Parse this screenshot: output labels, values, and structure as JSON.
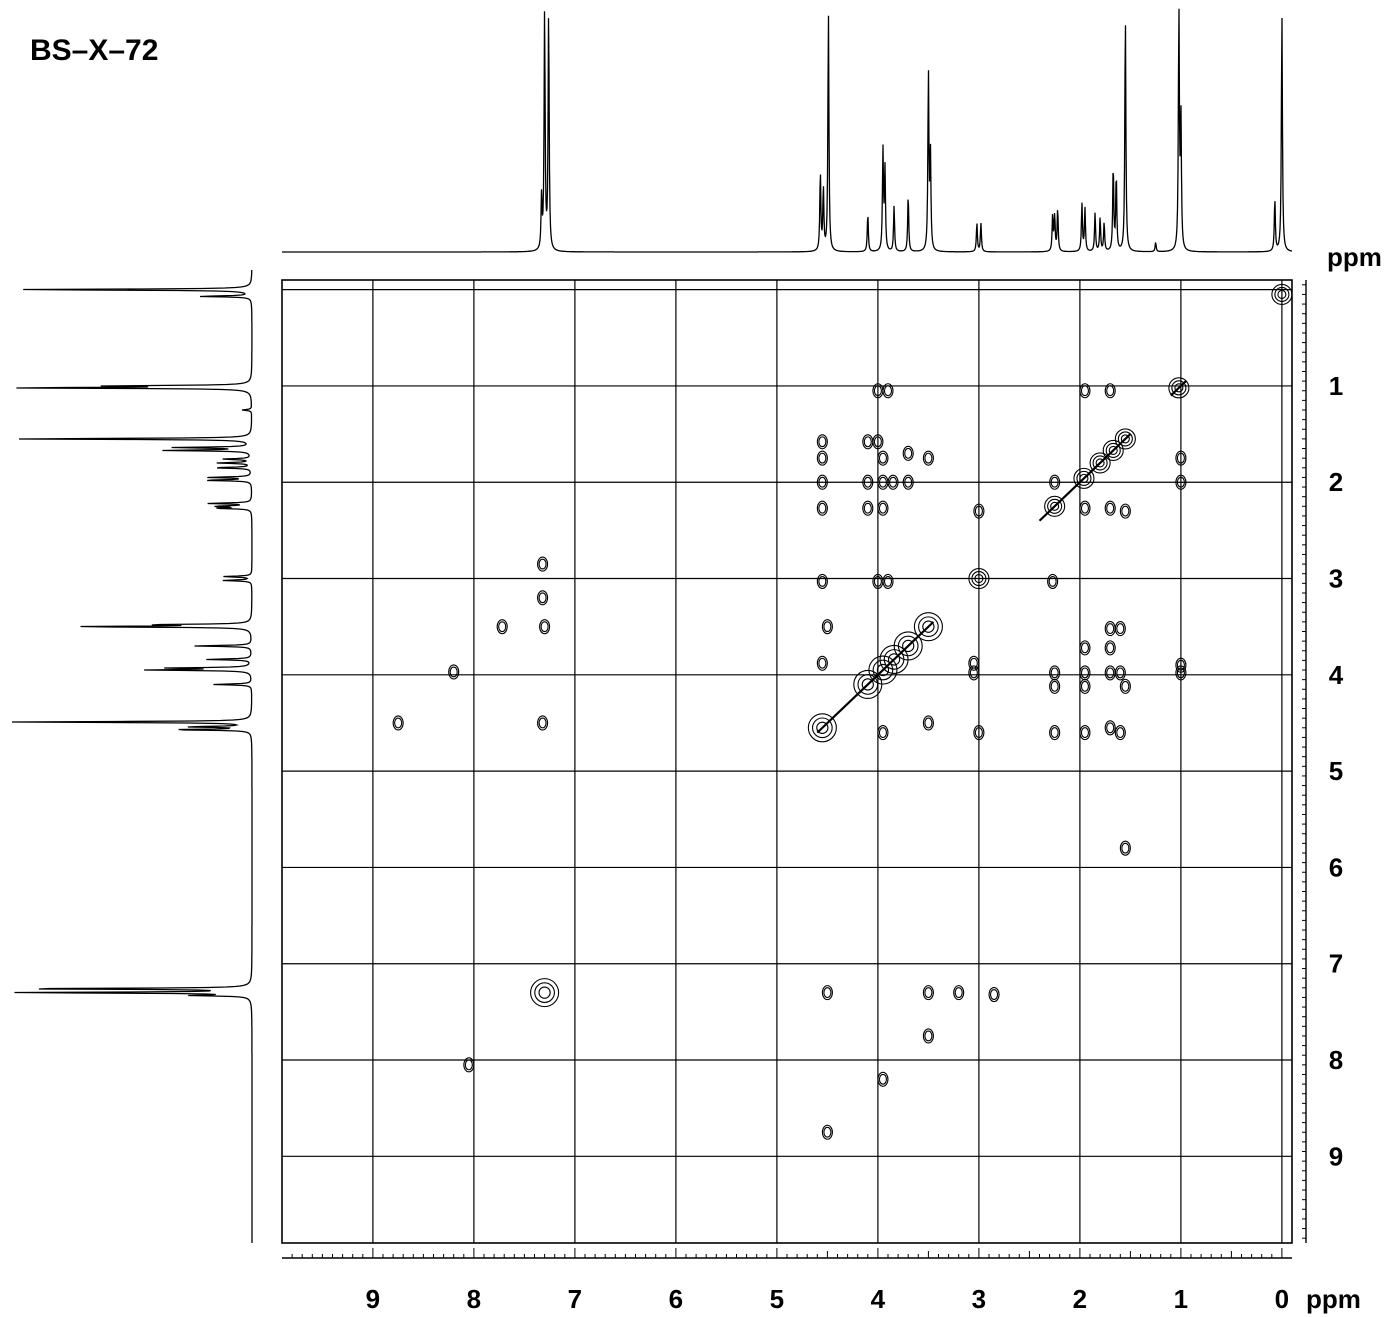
{
  "sample": {
    "label": "BS–X–72"
  },
  "chart_data": {
    "type": "heatmap",
    "title": "BS–X–72",
    "subtype": "2D COSY NMR spectrum with 1D projections",
    "xlabel": "ppm",
    "ylabel": "ppm",
    "xlim": [
      9.9,
      -0.1
    ],
    "ylim": [
      -0.1,
      9.9
    ],
    "x_ticks": [
      "9",
      "8",
      "7",
      "6",
      "5",
      "4",
      "3",
      "2",
      "1",
      "0"
    ],
    "y_ticks": [
      "1",
      "2",
      "3",
      "4",
      "5",
      "6",
      "7",
      "8",
      "9"
    ],
    "grid": true,
    "projection_peaks": [
      {
        "ppm": 7.3,
        "h": 1.0
      },
      {
        "ppm": 7.26,
        "h": 1.0
      },
      {
        "ppm": 7.33,
        "h": 0.22
      },
      {
        "ppm": 4.57,
        "h": 0.33
      },
      {
        "ppm": 4.54,
        "h": 0.26
      },
      {
        "ppm": 4.49,
        "h": 1.0
      },
      {
        "ppm": 4.1,
        "h": 0.16
      },
      {
        "ppm": 3.95,
        "h": 0.42
      },
      {
        "ppm": 3.93,
        "h": 0.34
      },
      {
        "ppm": 3.84,
        "h": 0.19
      },
      {
        "ppm": 3.7,
        "h": 0.24
      },
      {
        "ppm": 3.5,
        "h": 0.74
      },
      {
        "ppm": 3.48,
        "h": 0.4
      },
      {
        "ppm": 3.02,
        "h": 0.12
      },
      {
        "ppm": 2.98,
        "h": 0.12
      },
      {
        "ppm": 2.27,
        "h": 0.15
      },
      {
        "ppm": 2.25,
        "h": 0.15
      },
      {
        "ppm": 2.22,
        "h": 0.18
      },
      {
        "ppm": 1.98,
        "h": 0.2
      },
      {
        "ppm": 1.95,
        "h": 0.18
      },
      {
        "ppm": 1.85,
        "h": 0.16
      },
      {
        "ppm": 1.8,
        "h": 0.14
      },
      {
        "ppm": 1.76,
        "h": 0.12
      },
      {
        "ppm": 1.67,
        "h": 0.36
      },
      {
        "ppm": 1.64,
        "h": 0.32
      },
      {
        "ppm": 1.55,
        "h": 1.0
      },
      {
        "ppm": 1.25,
        "h": 0.04
      },
      {
        "ppm": 1.02,
        "h": 1.0
      },
      {
        "ppm": 1.0,
        "h": 0.55
      },
      {
        "ppm": 0.07,
        "h": 0.22
      },
      {
        "ppm": 0.0,
        "h": 1.0
      }
    ],
    "diagonal_peaks": [
      {
        "x": 0.0,
        "y": 0.05
      },
      {
        "x": 1.02,
        "y": 1.02
      },
      {
        "x": 1.55,
        "y": 1.55
      },
      {
        "x": 1.67,
        "y": 1.67
      },
      {
        "x": 1.8,
        "y": 1.8
      },
      {
        "x": 1.96,
        "y": 1.96
      },
      {
        "x": 2.25,
        "y": 2.25
      },
      {
        "x": 3.0,
        "y": 3.0
      },
      {
        "x": 3.5,
        "y": 3.5
      },
      {
        "x": 3.7,
        "y": 3.7
      },
      {
        "x": 3.84,
        "y": 3.84
      },
      {
        "x": 3.95,
        "y": 3.95
      },
      {
        "x": 4.1,
        "y": 4.1
      },
      {
        "x": 4.55,
        "y": 4.55
      },
      {
        "x": 7.3,
        "y": 7.3
      }
    ],
    "cross_peaks": [
      {
        "x": 4.0,
        "y": 1.05
      },
      {
        "x": 3.9,
        "y": 1.05
      },
      {
        "x": 1.95,
        "y": 1.05
      },
      {
        "x": 1.7,
        "y": 1.05
      },
      {
        "x": 4.55,
        "y": 1.58
      },
      {
        "x": 4.1,
        "y": 1.58
      },
      {
        "x": 4.0,
        "y": 1.58
      },
      {
        "x": 3.95,
        "y": 1.75
      },
      {
        "x": 3.7,
        "y": 1.7
      },
      {
        "x": 3.5,
        "y": 1.75
      },
      {
        "x": 4.55,
        "y": 1.75
      },
      {
        "x": 1.0,
        "y": 1.75
      },
      {
        "x": 4.55,
        "y": 2.0
      },
      {
        "x": 4.1,
        "y": 2.0
      },
      {
        "x": 3.95,
        "y": 2.0
      },
      {
        "x": 3.85,
        "y": 2.0
      },
      {
        "x": 3.7,
        "y": 2.0
      },
      {
        "x": 2.25,
        "y": 2.0
      },
      {
        "x": 1.0,
        "y": 2.0
      },
      {
        "x": 4.55,
        "y": 2.27
      },
      {
        "x": 4.1,
        "y": 2.27
      },
      {
        "x": 3.95,
        "y": 2.27
      },
      {
        "x": 3.0,
        "y": 2.3
      },
      {
        "x": 1.95,
        "y": 2.27
      },
      {
        "x": 1.7,
        "y": 2.27
      },
      {
        "x": 1.55,
        "y": 2.3
      },
      {
        "x": 4.55,
        "y": 3.03
      },
      {
        "x": 4.0,
        "y": 3.03
      },
      {
        "x": 3.9,
        "y": 3.03
      },
      {
        "x": 2.27,
        "y": 3.03
      },
      {
        "x": 7.32,
        "y": 2.85
      },
      {
        "x": 7.32,
        "y": 3.2
      },
      {
        "x": 7.3,
        "y": 3.5
      },
      {
        "x": 7.72,
        "y": 3.5
      },
      {
        "x": 4.5,
        "y": 3.5
      },
      {
        "x": 1.7,
        "y": 3.52
      },
      {
        "x": 1.6,
        "y": 3.52
      },
      {
        "x": 1.95,
        "y": 3.72
      },
      {
        "x": 1.7,
        "y": 3.72
      },
      {
        "x": 4.55,
        "y": 3.88
      },
      {
        "x": 3.05,
        "y": 3.88
      },
      {
        "x": 1.0,
        "y": 3.9
      },
      {
        "x": 8.2,
        "y": 3.97
      },
      {
        "x": 3.05,
        "y": 3.98
      },
      {
        "x": 2.25,
        "y": 3.98
      },
      {
        "x": 1.95,
        "y": 3.98
      },
      {
        "x": 1.7,
        "y": 3.98
      },
      {
        "x": 1.6,
        "y": 3.98
      },
      {
        "x": 1.0,
        "y": 3.98
      },
      {
        "x": 2.25,
        "y": 4.12
      },
      {
        "x": 1.95,
        "y": 4.12
      },
      {
        "x": 1.55,
        "y": 4.12
      },
      {
        "x": 8.75,
        "y": 4.5
      },
      {
        "x": 7.32,
        "y": 4.5
      },
      {
        "x": 3.5,
        "y": 4.5
      },
      {
        "x": 3.95,
        "y": 4.6
      },
      {
        "x": 3.0,
        "y": 4.6
      },
      {
        "x": 2.25,
        "y": 4.6
      },
      {
        "x": 1.95,
        "y": 4.6
      },
      {
        "x": 1.7,
        "y": 4.55
      },
      {
        "x": 1.6,
        "y": 4.6
      },
      {
        "x": 1.55,
        "y": 5.8
      },
      {
        "x": 4.5,
        "y": 7.3
      },
      {
        "x": 3.5,
        "y": 7.3
      },
      {
        "x": 3.2,
        "y": 7.3
      },
      {
        "x": 2.85,
        "y": 7.32
      },
      {
        "x": 3.5,
        "y": 7.75
      },
      {
        "x": 8.05,
        "y": 8.05
      },
      {
        "x": 3.95,
        "y": 8.2
      },
      {
        "x": 4.5,
        "y": 8.75
      }
    ]
  }
}
